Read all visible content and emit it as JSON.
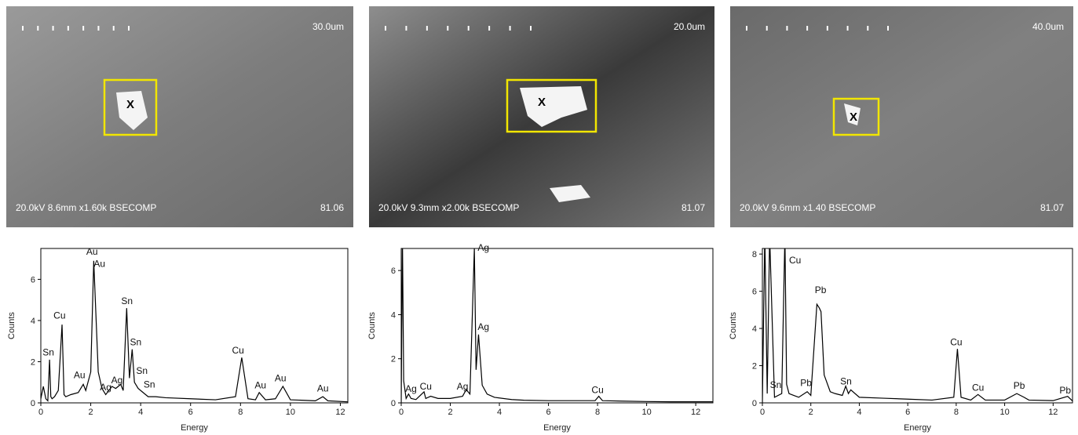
{
  "images": [
    {
      "scale_label": "30.0um",
      "info": "20.0kV 8.6mm x1.60k BSECOMP",
      "number": "81.06",
      "marker": "X"
    },
    {
      "scale_label": "20.0um",
      "info": "20.0kV 9.3mm x2.00k BSECOMP",
      "number": "81.07",
      "marker": "X"
    },
    {
      "scale_label": "40.0um",
      "info": "20.0kV 9.6mm x1.40 BSECOMP",
      "number": "81.07",
      "marker": "X"
    }
  ],
  "chart_data": [
    {
      "type": "line",
      "x_label": "Energy",
      "y_label": "Counts",
      "color": "#000000",
      "x": [
        0,
        0.1,
        0.2,
        0.28,
        0.35,
        0.4,
        0.45,
        0.55,
        0.7,
        0.85,
        0.93,
        1.0,
        1.2,
        1.5,
        1.7,
        1.8,
        2.0,
        2.12,
        2.2,
        2.3,
        2.45,
        2.6,
        2.85,
        3.0,
        3.2,
        3.3,
        3.44,
        3.55,
        3.66,
        3.75,
        3.9,
        4.1,
        4.3,
        4.6,
        5,
        6,
        7,
        7.8,
        8.05,
        8.3,
        8.6,
        8.75,
        9.0,
        9.4,
        9.7,
        10,
        11,
        11.3,
        11.5,
        12.3
      ],
      "values": [
        0.2,
        0.8,
        0.2,
        0.1,
        2.1,
        0.3,
        0.2,
        0.3,
        0.6,
        3.8,
        0.4,
        0.3,
        0.4,
        0.5,
        0.9,
        0.6,
        1.5,
        6.9,
        4.5,
        1.5,
        0.7,
        0.4,
        0.8,
        0.7,
        0.9,
        0.6,
        4.6,
        1.2,
        2.6,
        1.0,
        0.7,
        0.5,
        0.3,
        0.3,
        0.25,
        0.2,
        0.15,
        0.3,
        2.2,
        0.2,
        0.15,
        0.5,
        0.15,
        0.2,
        0.8,
        0.15,
        0.1,
        0.3,
        0.1,
        0.05
      ],
      "xlim": [
        0,
        12.3
      ],
      "xticks": [
        0,
        2,
        4,
        6,
        8,
        10,
        12
      ],
      "ylim": [
        0,
        7.5
      ],
      "yticks": [
        0,
        2,
        4,
        6
      ],
      "annotations": [
        {
          "text": "Sn",
          "x": 0.3,
          "y": 2.3
        },
        {
          "text": "Cu",
          "x": 0.75,
          "y": 4.1
        },
        {
          "text": "Au",
          "x": 2.05,
          "y": 7.2
        },
        {
          "text": "Au",
          "x": 2.35,
          "y": 6.6
        },
        {
          "text": "Au",
          "x": 1.55,
          "y": 1.2
        },
        {
          "text": "Ag",
          "x": 2.6,
          "y": 0.6
        },
        {
          "text": "Ag",
          "x": 3.05,
          "y": 0.95
        },
        {
          "text": "Sn",
          "x": 3.45,
          "y": 4.8
        },
        {
          "text": "Sn",
          "x": 3.8,
          "y": 2.8
        },
        {
          "text": "Sn",
          "x": 4.05,
          "y": 1.4
        },
        {
          "text": "Sn",
          "x": 4.35,
          "y": 0.75
        },
        {
          "text": "Cu",
          "x": 7.9,
          "y": 2.4
        },
        {
          "text": "Au",
          "x": 8.8,
          "y": 0.7
        },
        {
          "text": "Au",
          "x": 9.6,
          "y": 1.05
        },
        {
          "text": "Au",
          "x": 11.3,
          "y": 0.55
        }
      ]
    },
    {
      "type": "line",
      "x_label": "Energy",
      "y_label": "Counts",
      "color": "#000000",
      "x": [
        0,
        0.05,
        0.1,
        0.2,
        0.3,
        0.4,
        0.6,
        0.93,
        1.0,
        1.2,
        1.5,
        2,
        2.5,
        2.65,
        2.8,
        2.98,
        3.05,
        3.15,
        3.3,
        3.5,
        3.8,
        4.5,
        5,
        6,
        7,
        7.9,
        8.05,
        8.2,
        9,
        10,
        11,
        12,
        12.7
      ],
      "values": [
        0,
        7.5,
        1.0,
        0.2,
        0.4,
        0.2,
        0.15,
        0.5,
        0.2,
        0.3,
        0.2,
        0.2,
        0.3,
        0.6,
        0.4,
        7.0,
        1.5,
        3.1,
        0.8,
        0.4,
        0.25,
        0.15,
        0.12,
        0.1,
        0.1,
        0.1,
        0.3,
        0.1,
        0.08,
        0.06,
        0.05,
        0.05,
        0.05
      ],
      "xlim": [
        0,
        12.7
      ],
      "xticks": [
        0,
        2,
        4,
        6,
        8,
        10,
        12
      ],
      "ylim": [
        0,
        7
      ],
      "yticks": [
        0,
        2,
        4,
        6
      ],
      "annotations": [
        {
          "text": "Ag",
          "x": 0.4,
          "y": 0.5
        },
        {
          "text": "Cu",
          "x": 1.0,
          "y": 0.6
        },
        {
          "text": "Ag",
          "x": 2.5,
          "y": 0.6
        },
        {
          "text": "Ag",
          "x": 3.35,
          "y": 6.9
        },
        {
          "text": "Ag",
          "x": 3.35,
          "y": 3.3
        },
        {
          "text": "Cu",
          "x": 8.0,
          "y": 0.45
        }
      ]
    },
    {
      "type": "line",
      "x_label": "Energy",
      "y_label": "Counts",
      "color": "#000000",
      "x": [
        0,
        0.1,
        0.2,
        0.3,
        0.5,
        0.8,
        0.93,
        1.0,
        1.1,
        1.3,
        1.5,
        1.85,
        2.0,
        2.25,
        2.35,
        2.42,
        2.55,
        2.8,
        3.0,
        3.3,
        3.44,
        3.55,
        3.65,
        4,
        5,
        6,
        7,
        7.9,
        8.05,
        8.2,
        8.6,
        8.9,
        9.2,
        10,
        10.5,
        10.8,
        11,
        12,
        12.6,
        12.8
      ],
      "values": [
        0,
        9,
        0.5,
        9,
        0.3,
        0.5,
        9,
        1,
        0.5,
        0.4,
        0.3,
        0.6,
        0.4,
        5.3,
        5.1,
        4.9,
        1.5,
        0.6,
        0.5,
        0.4,
        0.9,
        0.5,
        0.7,
        0.3,
        0.25,
        0.2,
        0.15,
        0.3,
        2.9,
        0.3,
        0.15,
        0.45,
        0.15,
        0.15,
        0.5,
        0.3,
        0.15,
        0.12,
        0.35,
        0.1
      ],
      "xlim": [
        0,
        12.8
      ],
      "xticks": [
        0,
        2,
        4,
        6,
        8,
        10,
        12
      ],
      "ylim": [
        0,
        8.3
      ],
      "yticks": [
        0,
        2,
        4,
        6,
        8
      ],
      "annotations": [
        {
          "text": "Cu",
          "x": 1.35,
          "y": 7.5
        },
        {
          "text": "Pb",
          "x": 2.4,
          "y": 5.9
        },
        {
          "text": "Sn",
          "x": 0.55,
          "y": 0.8
        },
        {
          "text": "Pb",
          "x": 1.8,
          "y": 0.9
        },
        {
          "text": "Sn",
          "x": 3.45,
          "y": 1.0
        },
        {
          "text": "Cu",
          "x": 8.0,
          "y": 3.1
        },
        {
          "text": "Cu",
          "x": 8.9,
          "y": 0.65
        },
        {
          "text": "Pb",
          "x": 10.6,
          "y": 0.75
        },
        {
          "text": "Pb",
          "x": 12.5,
          "y": 0.5
        }
      ]
    }
  ]
}
